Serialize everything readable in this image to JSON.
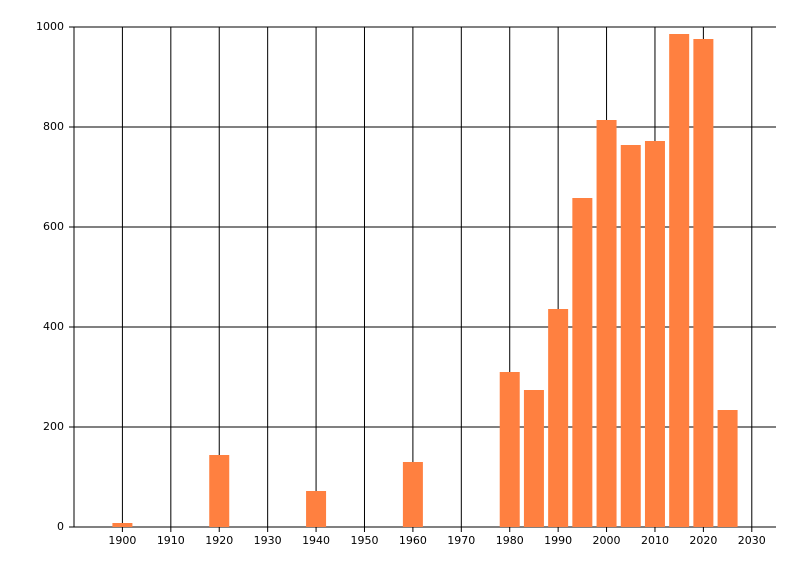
{
  "chart_data": {
    "type": "bar",
    "x": [
      1900,
      1920,
      1940,
      1960,
      1980,
      1985,
      1990,
      1995,
      2000,
      2005,
      2010,
      2015,
      2020,
      2025
    ],
    "values": [
      8,
      144,
      72,
      130,
      310,
      274,
      436,
      658,
      814,
      764,
      772,
      986,
      976,
      234
    ],
    "color": "#ff8040",
    "xlim": [
      1890,
      2035
    ],
    "xticks": [
      1900,
      1910,
      1920,
      1930,
      1940,
      1950,
      1960,
      1970,
      1980,
      1990,
      2000,
      2010,
      2020,
      2030
    ],
    "ylim": [
      0,
      1000
    ],
    "yticks": [
      0,
      200,
      400,
      600,
      800,
      1000
    ],
    "grid": true
  }
}
